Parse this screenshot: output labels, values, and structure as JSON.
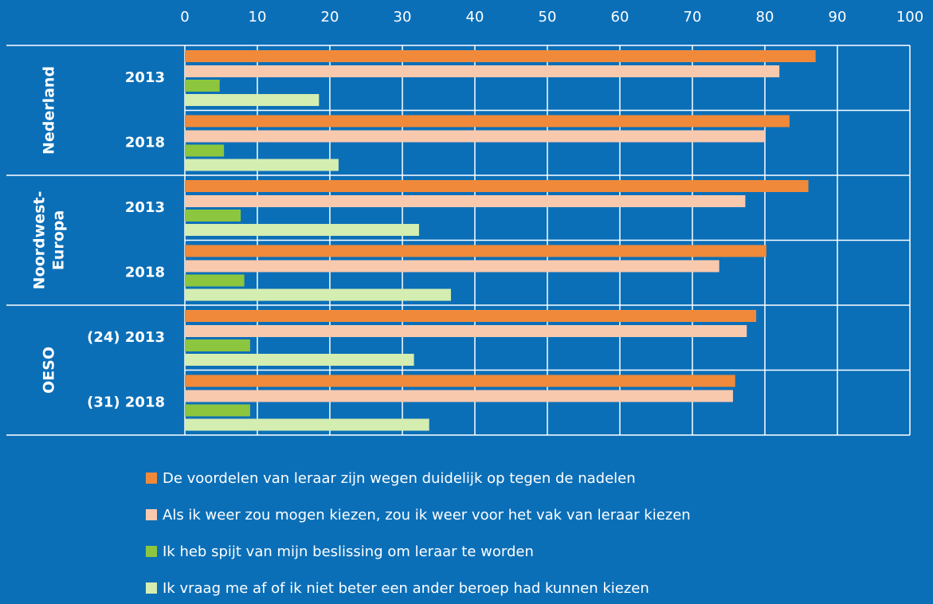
{
  "chart_data": {
    "type": "bar",
    "orientation": "horizontal",
    "groups": [
      [
        "Nederland"
      ],
      [
        "Noordwest-",
        "Europa"
      ],
      [
        "OESO"
      ]
    ],
    "categories": [
      "2013",
      "2018",
      "2013",
      "2018",
      "(24) 2013",
      "(31) 2018"
    ],
    "series": [
      {
        "name": "De voordelen van leraar zijn wegen duidelijk op tegen de nadelen",
        "color": "#f08a3a",
        "values": [
          87,
          83.4,
          86,
          80.2,
          78.8,
          75.9
        ]
      },
      {
        "name": "Als ik weer zou mogen kiezen, zou ik weer voor het vak van leraar kiezen",
        "color": "#f9c9ae",
        "values": [
          82,
          80,
          77.3,
          73.7,
          77.5,
          75.6
        ]
      },
      {
        "name": "Ik heb spijt van mijn beslissing om leraar te worden",
        "color": "#8cc63f",
        "values": [
          4.8,
          5.4,
          7.7,
          8.2,
          9,
          9
        ]
      },
      {
        "name": "Ik vraag me af of ik niet beter een ander beroep had kunnen kiezen",
        "color": "#d4edb0",
        "values": [
          18.5,
          21.2,
          32.3,
          36.7,
          31.6,
          33.7
        ]
      }
    ],
    "xlim": [
      0,
      100
    ],
    "xticks": [
      0,
      10,
      20,
      30,
      40,
      50,
      60,
      70,
      80,
      90,
      100
    ],
    "grid": true
  }
}
